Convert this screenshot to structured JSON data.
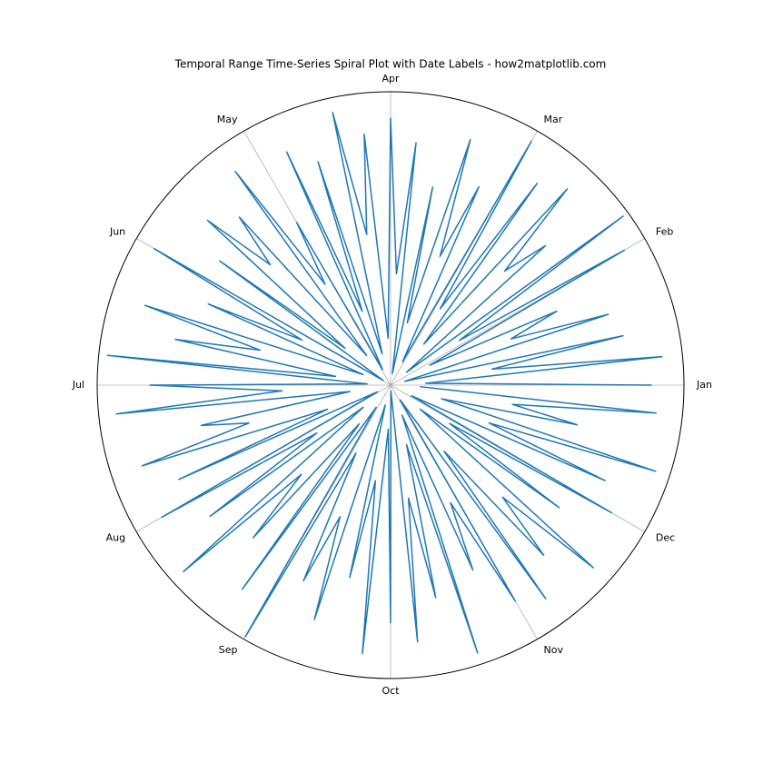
{
  "chart_data": {
    "type": "polar-line",
    "title": "Temporal Range Time-Series Spiral Plot with Date Labels - how2matplotlib.com",
    "color": "#1f77b4",
    "rlim": [
      0,
      1
    ],
    "xlim": [
      0,
      360
    ],
    "xticks": [
      {
        "value": 0,
        "label": "Jan"
      },
      {
        "value": 30,
        "label": "Feb"
      },
      {
        "value": 60,
        "label": "Mar"
      },
      {
        "value": 90,
        "label": "Apr"
      },
      {
        "value": 120,
        "label": "May"
      },
      {
        "value": 150,
        "label": "Jun"
      },
      {
        "value": 180,
        "label": "Jul"
      },
      {
        "value": 210,
        "label": "Aug"
      },
      {
        "value": 240,
        "label": "Sep"
      },
      {
        "value": 270,
        "label": "Oct"
      },
      {
        "value": 300,
        "label": "Nov"
      },
      {
        "value": 330,
        "label": "Dec"
      }
    ],
    "grid": true,
    "x": [
      0,
      3,
      6,
      9,
      12,
      15,
      18,
      21,
      24,
      27,
      30,
      33,
      36,
      39,
      42,
      45,
      48,
      51,
      54,
      57,
      60,
      63,
      66,
      69,
      72,
      75,
      78,
      81,
      84,
      87,
      90,
      93,
      96,
      99,
      102,
      105,
      108,
      111,
      114,
      117,
      120,
      123,
      126,
      129,
      132,
      135,
      138,
      141,
      144,
      147,
      150,
      153,
      156,
      159,
      162,
      165,
      168,
      171,
      174,
      177,
      180,
      183,
      186,
      189,
      192,
      195,
      198,
      201,
      204,
      207,
      210,
      213,
      216,
      219,
      222,
      225,
      228,
      231,
      234,
      237,
      240,
      243,
      246,
      249,
      252,
      255,
      258,
      261,
      264,
      267,
      270,
      273,
      276,
      279,
      282,
      285,
      288,
      291,
      294,
      297,
      300,
      303,
      306,
      309,
      312,
      315,
      318,
      321,
      324,
      327,
      330,
      333,
      336,
      339,
      342,
      345,
      348,
      351,
      354,
      357
    ],
    "values": [
      0.89,
      0.12,
      0.93,
      0.35,
      0.81,
      0.05,
      0.78,
      0.44,
      0.62,
      0.15,
      0.92,
      0.28,
      0.98,
      0.07,
      0.71,
      0.55,
      0.9,
      0.18,
      0.85,
      0.31,
      0.96,
      0.09,
      0.74,
      0.47,
      0.88,
      0.22,
      0.69,
      0.04,
      0.83,
      0.38,
      0.91,
      0.16,
      0.86,
      0.52,
      0.95,
      0.11,
      0.8,
      0.27,
      0.87,
      0.06,
      0.64,
      0.41,
      0.9,
      0.13,
      0.77,
      0.58,
      0.84,
      0.2,
      0.72,
      0.03,
      0.93,
      0.34,
      0.68,
      0.1,
      0.88,
      0.46,
      0.75,
      0.19,
      0.97,
      0.08,
      0.82,
      0.37,
      0.94,
      0.14,
      0.66,
      0.5,
      0.89,
      0.23,
      0.79,
      0.05,
      0.9,
      0.3,
      0.76,
      0.12,
      0.95,
      0.43,
      0.7,
      0.17,
      0.86,
      0.09,
      0.99,
      0.26,
      0.73,
      0.48,
      0.84,
      0.07,
      0.67,
      0.33,
      0.92,
      0.15,
      0.81,
      0.02,
      0.88,
      0.39,
      0.74,
      0.21,
      0.96,
      0.11,
      0.69,
      0.45,
      0.85,
      0.06,
      0.9,
      0.29,
      0.78,
      0.54,
      0.93,
      0.13,
      0.71,
      0.24,
      0.87,
      0.08,
      0.8,
      0.36,
      0.95,
      0.18,
      0.65,
      0.42,
      0.91,
      0.1
    ]
  }
}
